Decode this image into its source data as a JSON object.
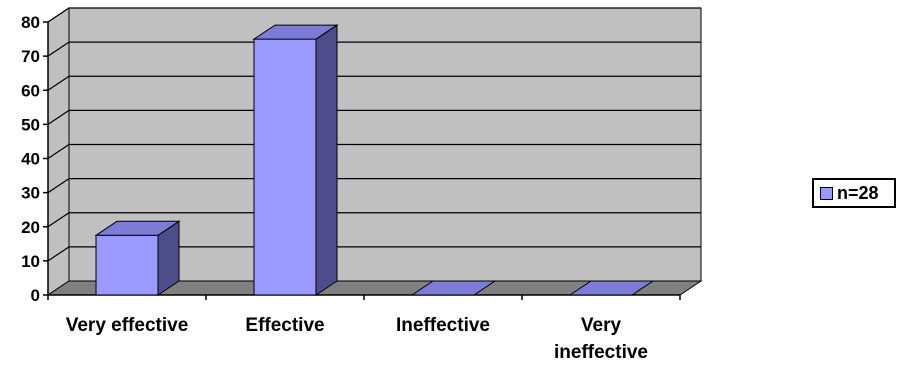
{
  "chart_data": {
    "type": "bar",
    "categories": [
      "Very effective",
      "Effective",
      "Ineffective",
      "Very ineffective"
    ],
    "category_lines": [
      [
        "Very effective"
      ],
      [
        "Effective"
      ],
      [
        "Ineffective"
      ],
      [
        "Very",
        "ineffective"
      ]
    ],
    "series": [
      {
        "name": "n=28",
        "values": [
          17.5,
          75,
          0,
          0
        ],
        "color": "#9999ff"
      }
    ],
    "ylim": [
      0,
      80
    ],
    "yticks": [
      "0",
      "10",
      "20",
      "30",
      "40",
      "50",
      "60",
      "70",
      "80"
    ],
    "grid": true,
    "legend_position": "right",
    "wall_color": "#c0c0c0",
    "floor_color": "#808080"
  }
}
